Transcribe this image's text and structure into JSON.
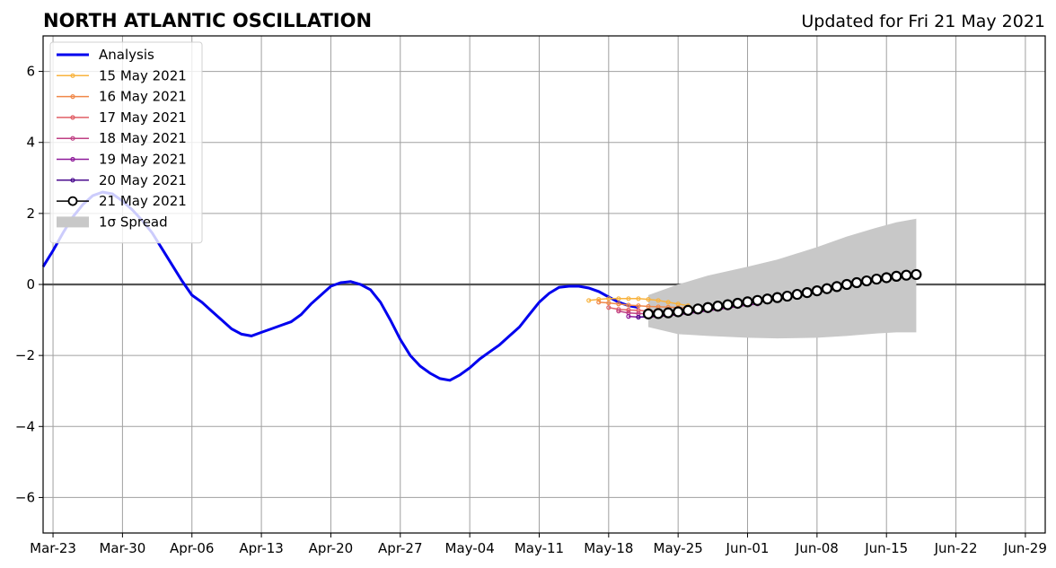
{
  "header": {
    "title": "NORTH ATLANTIC OSCILLATION",
    "subtitle": "Updated for Fri 21 May 2021"
  },
  "chart_data": {
    "type": "line",
    "title": "NORTH ATLANTIC OSCILLATION",
    "xlabel": "",
    "ylabel": "",
    "x_axis": {
      "type": "date",
      "range": [
        "2021-03-22",
        "2021-07-01"
      ],
      "tick_values": [
        "2021-03-23",
        "2021-03-30",
        "2021-04-06",
        "2021-04-13",
        "2021-04-20",
        "2021-04-27",
        "2021-05-04",
        "2021-05-11",
        "2021-05-18",
        "2021-05-25",
        "2021-06-01",
        "2021-06-08",
        "2021-06-15",
        "2021-06-22",
        "2021-06-29"
      ],
      "tick_labels": [
        "Mar-23",
        "Mar-30",
        "Apr-06",
        "Apr-13",
        "Apr-20",
        "Apr-27",
        "May-04",
        "May-11",
        "May-18",
        "May-25",
        "Jun-01",
        "Jun-08",
        "Jun-15",
        "Jun-22",
        "Jun-29"
      ]
    },
    "y_axis": {
      "range": [
        -7,
        7
      ],
      "tick_values": [
        -6,
        -4,
        -2,
        0,
        2,
        4,
        6
      ],
      "tick_labels": [
        "−6",
        "−4",
        "−2",
        "0",
        "2",
        "4",
        "6"
      ]
    },
    "grid": true,
    "zero_line": true,
    "legend_position": "top-left",
    "series": [
      {
        "name": "Analysis",
        "color": "#0000ee",
        "points": [
          [
            "2021-03-22",
            0.5
          ],
          [
            "2021-03-23",
            0.95
          ],
          [
            "2021-03-24",
            1.45
          ],
          [
            "2021-03-25",
            1.9
          ],
          [
            "2021-03-26",
            2.25
          ],
          [
            "2021-03-27",
            2.5
          ],
          [
            "2021-03-28",
            2.6
          ],
          [
            "2021-03-29",
            2.55
          ],
          [
            "2021-03-30",
            2.35
          ],
          [
            "2021-03-31",
            2.1
          ],
          [
            "2021-04-01",
            1.8
          ],
          [
            "2021-04-02",
            1.45
          ],
          [
            "2021-04-03",
            1.0
          ],
          [
            "2021-04-04",
            0.55
          ],
          [
            "2021-04-05",
            0.1
          ],
          [
            "2021-04-06",
            -0.3
          ],
          [
            "2021-04-07",
            -0.5
          ],
          [
            "2021-04-08",
            -0.75
          ],
          [
            "2021-04-09",
            -1.0
          ],
          [
            "2021-04-10",
            -1.25
          ],
          [
            "2021-04-11",
            -1.4
          ],
          [
            "2021-04-12",
            -1.45
          ],
          [
            "2021-04-13",
            -1.35
          ],
          [
            "2021-04-14",
            -1.25
          ],
          [
            "2021-04-15",
            -1.15
          ],
          [
            "2021-04-16",
            -1.05
          ],
          [
            "2021-04-17",
            -0.85
          ],
          [
            "2021-04-18",
            -0.55
          ],
          [
            "2021-04-19",
            -0.3
          ],
          [
            "2021-04-20",
            -0.05
          ],
          [
            "2021-04-21",
            0.05
          ],
          [
            "2021-04-22",
            0.08
          ],
          [
            "2021-04-23",
            0.0
          ],
          [
            "2021-04-24",
            -0.15
          ],
          [
            "2021-04-25",
            -0.5
          ],
          [
            "2021-04-26",
            -1.0
          ],
          [
            "2021-04-27",
            -1.55
          ],
          [
            "2021-04-28",
            -2.0
          ],
          [
            "2021-04-29",
            -2.3
          ],
          [
            "2021-04-30",
            -2.5
          ],
          [
            "2021-05-01",
            -2.65
          ],
          [
            "2021-05-02",
            -2.7
          ],
          [
            "2021-05-03",
            -2.55
          ],
          [
            "2021-05-04",
            -2.35
          ],
          [
            "2021-05-05",
            -2.1
          ],
          [
            "2021-05-06",
            -1.9
          ],
          [
            "2021-05-07",
            -1.7
          ],
          [
            "2021-05-08",
            -1.45
          ],
          [
            "2021-05-09",
            -1.2
          ],
          [
            "2021-05-10",
            -0.85
          ],
          [
            "2021-05-11",
            -0.5
          ],
          [
            "2021-05-12",
            -0.25
          ],
          [
            "2021-05-13",
            -0.08
          ],
          [
            "2021-05-14",
            -0.05
          ],
          [
            "2021-05-15",
            -0.05
          ],
          [
            "2021-05-16",
            -0.1
          ],
          [
            "2021-05-17",
            -0.2
          ],
          [
            "2021-05-18",
            -0.35
          ],
          [
            "2021-05-19",
            -0.5
          ],
          [
            "2021-05-20",
            -0.6
          ],
          [
            "2021-05-21",
            -0.65
          ]
        ]
      },
      {
        "name": "15 May 2021",
        "color": "#f8b33e",
        "points": [
          [
            "2021-05-16",
            -0.45
          ],
          [
            "2021-05-17",
            -0.42
          ],
          [
            "2021-05-18",
            -0.4
          ],
          [
            "2021-05-19",
            -0.4
          ],
          [
            "2021-05-20",
            -0.4
          ],
          [
            "2021-05-21",
            -0.4
          ],
          [
            "2021-05-22",
            -0.42
          ],
          [
            "2021-05-23",
            -0.45
          ],
          [
            "2021-05-24",
            -0.5
          ],
          [
            "2021-05-25",
            -0.55
          ],
          [
            "2021-05-26",
            -0.6
          ]
        ]
      },
      {
        "name": "16 May 2021",
        "color": "#f08849",
        "points": [
          [
            "2021-05-17",
            -0.5
          ],
          [
            "2021-05-18",
            -0.52
          ],
          [
            "2021-05-19",
            -0.55
          ],
          [
            "2021-05-20",
            -0.58
          ],
          [
            "2021-05-21",
            -0.6
          ],
          [
            "2021-05-22",
            -0.62
          ],
          [
            "2021-05-23",
            -0.63
          ],
          [
            "2021-05-24",
            -0.64
          ],
          [
            "2021-05-25",
            -0.65
          ],
          [
            "2021-05-26",
            -0.66
          ],
          [
            "2021-05-27",
            -0.65
          ]
        ]
      },
      {
        "name": "17 May 2021",
        "color": "#e05f66",
        "points": [
          [
            "2021-05-18",
            -0.65
          ],
          [
            "2021-05-19",
            -0.7
          ],
          [
            "2021-05-20",
            -0.72
          ],
          [
            "2021-05-21",
            -0.73
          ],
          [
            "2021-05-22",
            -0.75
          ],
          [
            "2021-05-23",
            -0.76
          ],
          [
            "2021-05-24",
            -0.77
          ],
          [
            "2021-05-25",
            -0.76
          ],
          [
            "2021-05-26",
            -0.75
          ],
          [
            "2021-05-27",
            -0.73
          ],
          [
            "2021-05-28",
            -0.7
          ]
        ]
      },
      {
        "name": "18 May 2021",
        "color": "#bf3f83",
        "points": [
          [
            "2021-05-19",
            -0.75
          ],
          [
            "2021-05-20",
            -0.8
          ],
          [
            "2021-05-21",
            -0.82
          ],
          [
            "2021-05-22",
            -0.83
          ],
          [
            "2021-05-23",
            -0.84
          ],
          [
            "2021-05-24",
            -0.83
          ],
          [
            "2021-05-25",
            -0.82
          ],
          [
            "2021-05-26",
            -0.8
          ],
          [
            "2021-05-27",
            -0.77
          ],
          [
            "2021-05-28",
            -0.74
          ],
          [
            "2021-05-29",
            -0.7
          ],
          [
            "2021-05-30",
            -0.66
          ],
          [
            "2021-05-31",
            -0.62
          ]
        ]
      },
      {
        "name": "19 May 2021",
        "color": "#8e1a9a",
        "points": [
          [
            "2021-05-20",
            -0.9
          ],
          [
            "2021-05-21",
            -0.92
          ],
          [
            "2021-05-22",
            -0.92
          ],
          [
            "2021-05-23",
            -0.9
          ],
          [
            "2021-05-24",
            -0.88
          ],
          [
            "2021-05-25",
            -0.85
          ],
          [
            "2021-05-26",
            -0.82
          ],
          [
            "2021-05-27",
            -0.78
          ],
          [
            "2021-05-28",
            -0.74
          ],
          [
            "2021-05-29",
            -0.7
          ],
          [
            "2021-05-30",
            -0.66
          ],
          [
            "2021-05-31",
            -0.62
          ],
          [
            "2021-06-01",
            -0.58
          ],
          [
            "2021-06-02",
            -0.55
          ]
        ]
      },
      {
        "name": "20 May 2021",
        "color": "#4b0c8f",
        "points": [
          [
            "2021-05-21",
            -0.92
          ],
          [
            "2021-05-22",
            -0.9
          ],
          [
            "2021-05-23",
            -0.87
          ],
          [
            "2021-05-24",
            -0.84
          ],
          [
            "2021-05-25",
            -0.8
          ],
          [
            "2021-05-26",
            -0.76
          ],
          [
            "2021-05-27",
            -0.72
          ]
        ]
      },
      {
        "name": "21 May 2021",
        "color": "#000000",
        "marker": "open-circle",
        "points": [
          [
            "2021-05-22",
            -0.83
          ],
          [
            "2021-05-23",
            -0.82
          ],
          [
            "2021-05-24",
            -0.8
          ],
          [
            "2021-05-25",
            -0.77
          ],
          [
            "2021-05-26",
            -0.73
          ],
          [
            "2021-05-27",
            -0.69
          ],
          [
            "2021-05-28",
            -0.65
          ],
          [
            "2021-05-29",
            -0.61
          ],
          [
            "2021-05-30",
            -0.57
          ],
          [
            "2021-05-31",
            -0.53
          ],
          [
            "2021-06-01",
            -0.49
          ],
          [
            "2021-06-02",
            -0.45
          ],
          [
            "2021-06-03",
            -0.41
          ],
          [
            "2021-06-04",
            -0.37
          ],
          [
            "2021-06-05",
            -0.33
          ],
          [
            "2021-06-06",
            -0.28
          ],
          [
            "2021-06-07",
            -0.23
          ],
          [
            "2021-06-08",
            -0.18
          ],
          [
            "2021-06-09",
            -0.12
          ],
          [
            "2021-06-10",
            -0.06
          ],
          [
            "2021-06-11",
            0.0
          ],
          [
            "2021-06-12",
            0.05
          ],
          [
            "2021-06-13",
            0.1
          ],
          [
            "2021-06-14",
            0.15
          ],
          [
            "2021-06-15",
            0.19
          ],
          [
            "2021-06-16",
            0.23
          ],
          [
            "2021-06-17",
            0.26
          ],
          [
            "2021-06-18",
            0.28
          ]
        ]
      }
    ],
    "spread": {
      "name": "1σ Spread",
      "color": "#c8c8c8",
      "points": [
        [
          "2021-05-22",
          -0.3,
          -1.2
        ],
        [
          "2021-05-25",
          0.0,
          -1.4
        ],
        [
          "2021-05-28",
          0.25,
          -1.45
        ],
        [
          "2021-06-01",
          0.5,
          -1.5
        ],
        [
          "2021-06-04",
          0.7,
          -1.52
        ],
        [
          "2021-06-08",
          1.05,
          -1.5
        ],
        [
          "2021-06-11",
          1.35,
          -1.45
        ],
        [
          "2021-06-14",
          1.6,
          -1.38
        ],
        [
          "2021-06-16",
          1.75,
          -1.35
        ],
        [
          "2021-06-18",
          1.85,
          -1.35
        ]
      ]
    }
  }
}
